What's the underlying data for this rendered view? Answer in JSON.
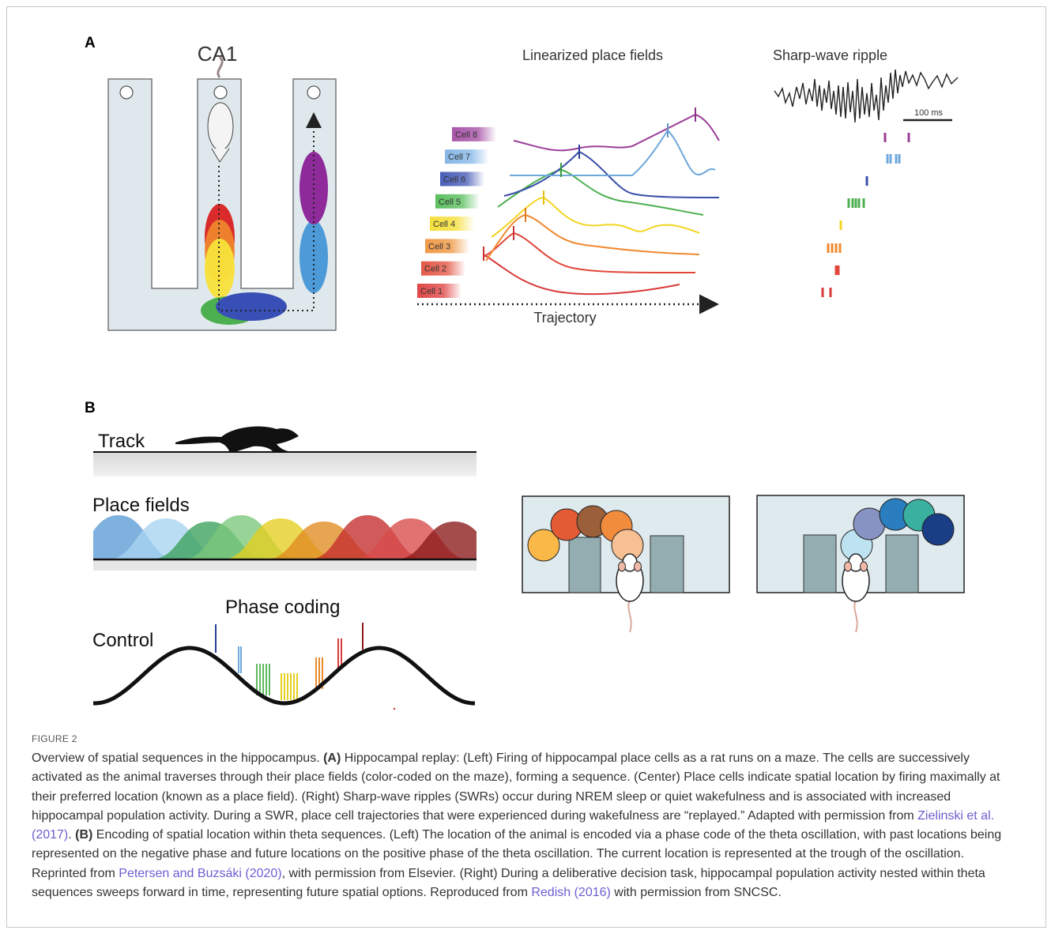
{
  "panel_a": {
    "label": "A",
    "maze_title": "CA1",
    "place_fields_title": "Linearized place fields",
    "cells": [
      "Cell 1",
      "Cell 2",
      "Cell 3",
      "Cell 4",
      "Cell 5",
      "Cell 6",
      "Cell 7",
      "Cell 8"
    ],
    "x_axis_label": "Trajectory",
    "ripple_title": "Sharp-wave ripple",
    "scale_bar": "100 ms"
  },
  "panel_b": {
    "label": "B",
    "track": "Track",
    "place_fields": "Place fields",
    "phase_coding": "Phase coding",
    "control": "Control"
  },
  "caption": {
    "label": "FIGURE 2",
    "intro": "Overview of spatial sequences in the hippocampus. ",
    "a_label": "(A)",
    "a_text": " Hippocampal replay: (Left) Firing of hippocampal place cells as a rat runs on a maze. The cells are successively activated as the animal traverses through their place fields (color-coded on the maze), forming a sequence. (Center) Place cells indicate spatial location by firing maximally at their preferred location (known as a place field). (Right) Sharp-wave ripples (SWRs) occur during NREM sleep or quiet wakefulness and is associated with increased hippocampal population activity. During a SWR, place cell trajectories that were experienced during wakefulness are “replayed.” Adapted with permission from ",
    "a_ref": "Zielinski et al. (2017)",
    "a_end": ". ",
    "b_label": "(B)",
    "b_text": " Encoding of spatial location within theta sequences. (Left) The location of the animal is encoded via a phase code of the theta oscillation, with past locations being represented on the negative phase and future locations on the positive phase of the theta oscillation. The current location is represented at the trough of the oscillation. Reprinted from ",
    "b_ref1": "Petersen and Buzsáki (2020)",
    "b_mid": ", with permission from Elsevier. (Right) During a deliberative decision task, hippocampal population activity nested within theta sequences sweeps forward in time, representing future spatial options. Reproduced from ",
    "b_ref2": "Redish (2016)",
    "b_end": " with permission from SNCSC."
  }
}
